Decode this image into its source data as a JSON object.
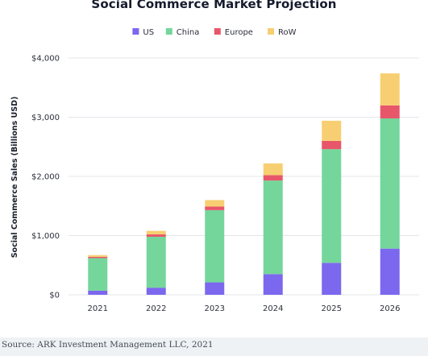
{
  "colors": {
    "US": "#7b68ee",
    "China": "#74d69b",
    "Europe": "#e8566a",
    "RoW": "#f7cf72",
    "grid": "#e3e5e9",
    "axis_text": "#2b2f3a"
  },
  "chart_data": {
    "type": "bar",
    "stacked": true,
    "title": "Social Commerce Market Projection",
    "xlabel": "",
    "ylabel": "Social Commerce Sales (Billions USD)",
    "categories": [
      "2021",
      "2022",
      "2023",
      "2024",
      "2025",
      "2026"
    ],
    "series": [
      {
        "name": "US",
        "values": [
          70,
          120,
          210,
          350,
          540,
          780
        ]
      },
      {
        "name": "China",
        "values": [
          550,
          860,
          1220,
          1580,
          1920,
          2200
        ]
      },
      {
        "name": "Europe",
        "values": [
          20,
          40,
          60,
          90,
          140,
          220
        ]
      },
      {
        "name": "RoW",
        "values": [
          30,
          60,
          110,
          200,
          340,
          540
        ]
      }
    ],
    "ylim": [
      0,
      4000
    ],
    "yticks": [
      0,
      1000,
      2000,
      3000,
      4000
    ],
    "ytick_labels": [
      "$0",
      "$1,000",
      "$2,000",
      "$3,000",
      "$4,000"
    ],
    "grid": true,
    "legend_position": "top-center"
  },
  "source": "Source: ARK Investment Management LLC, 2021"
}
